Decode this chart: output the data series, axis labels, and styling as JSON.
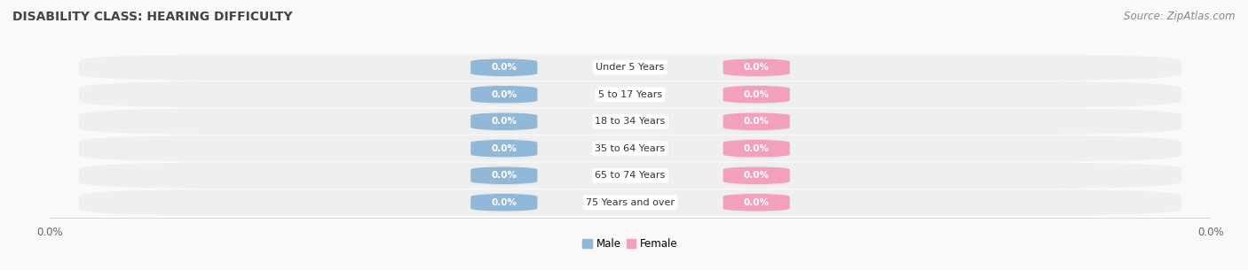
{
  "title": "DISABILITY CLASS: HEARING DIFFICULTY",
  "source_text": "Source: ZipAtlas.com",
  "categories": [
    "Under 5 Years",
    "5 to 17 Years",
    "18 to 34 Years",
    "35 to 64 Years",
    "65 to 74 Years",
    "75 Years and over"
  ],
  "male_values": [
    0.0,
    0.0,
    0.0,
    0.0,
    0.0,
    0.0
  ],
  "female_values": [
    0.0,
    0.0,
    0.0,
    0.0,
    0.0,
    0.0
  ],
  "male_color": "#92b8d8",
  "female_color": "#f2a0bc",
  "row_bg_color": "#efefef",
  "fig_bg_color": "#f9f9f9",
  "title_fontsize": 10,
  "source_fontsize": 8.5,
  "figsize": [
    14.06,
    3.05
  ],
  "dpi": 100,
  "xlim": [
    -1.0,
    1.0
  ],
  "x_tick_label_left": "0.0%",
  "x_tick_label_right": "0.0%",
  "legend_labels": [
    "Male",
    "Female"
  ],
  "category_label_fontsize": 8,
  "value_label_fontsize": 7.5
}
